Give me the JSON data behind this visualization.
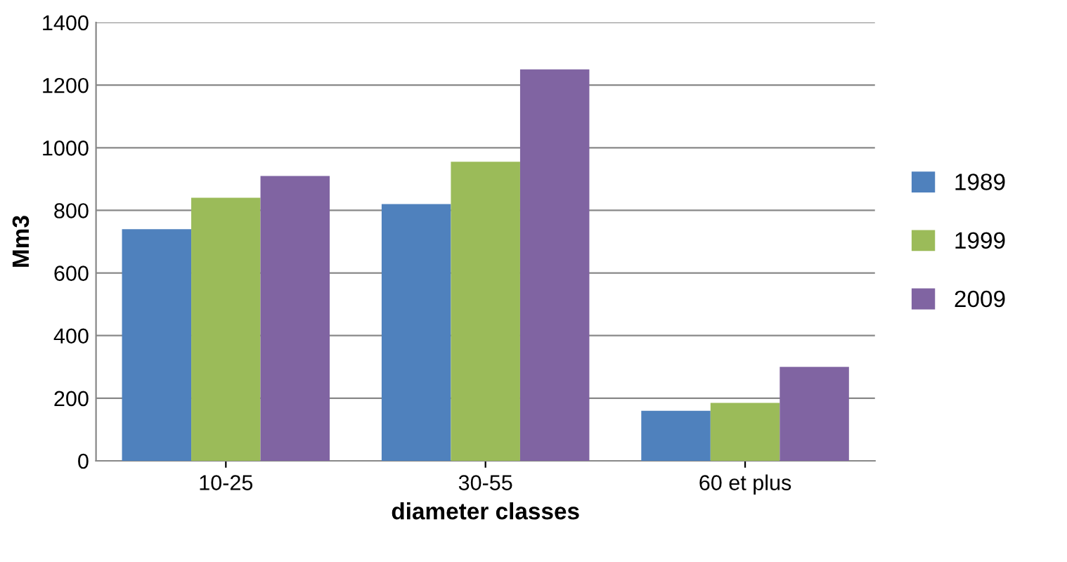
{
  "chart_data": {
    "type": "bar",
    "xlabel": "diameter classes",
    "ylabel": "Mm3",
    "categories": [
      "10-25",
      "30-55",
      "60 et plus"
    ],
    "series": [
      {
        "name": "1989",
        "color": "#4f81bd",
        "values": [
          740,
          820,
          160
        ]
      },
      {
        "name": "1999",
        "color": "#9bbb59",
        "values": [
          840,
          955,
          185
        ]
      },
      {
        "name": "2009",
        "color": "#8064a2",
        "values": [
          910,
          1250,
          300
        ]
      }
    ],
    "ylim": [
      0,
      1400
    ],
    "yticks": [
      0,
      200,
      400,
      600,
      800,
      1000,
      1200,
      1400
    ],
    "grid": "y",
    "legend": "right"
  }
}
